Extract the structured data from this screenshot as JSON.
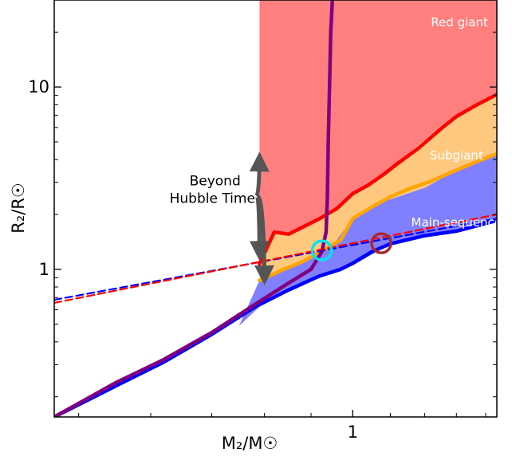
{
  "chart_data": {
    "type": "line",
    "xlabel": "M₂/M☉",
    "ylabel": "R₂/R☉",
    "xscale": "log",
    "yscale": "log",
    "xlim": [
      0.47,
      1.44
    ],
    "ylim": [
      0.155,
      30
    ],
    "xticks": [
      {
        "value": 1,
        "label": "1"
      }
    ],
    "yticks": [
      {
        "value": 1,
        "label": "1"
      },
      {
        "value": 10,
        "label": "10"
      }
    ],
    "grid": false,
    "legend": "none",
    "regions": [
      {
        "label": "Red giant",
        "color": "#ff7f7f",
        "label_at": [
          1.31,
          21.5
        ],
        "polygon": [
          [
            0.79,
            30
          ],
          [
            1.44,
            30
          ],
          [
            1.44,
            9.1
          ],
          [
            1.25,
            6.1
          ],
          [
            1.1,
            3.55
          ],
          [
            1.0,
            2.6
          ],
          [
            0.93,
            1.9
          ],
          [
            0.87,
            1.6
          ],
          [
            0.82,
            1.6
          ],
          [
            0.79,
            1.07
          ]
        ]
      },
      {
        "label": "Subgiant",
        "color": "#ffc87f",
        "label_at": [
          1.3,
          4.0
        ],
        "polygon": [
          [
            0.79,
            1.07
          ],
          [
            0.82,
            1.6
          ],
          [
            0.87,
            1.6
          ],
          [
            0.93,
            1.9
          ],
          [
            1.0,
            2.6
          ],
          [
            1.1,
            3.55
          ],
          [
            1.25,
            6.1
          ],
          [
            1.44,
            9.1
          ],
          [
            1.44,
            4.3
          ],
          [
            1.3,
            3.5
          ],
          [
            1.2,
            2.8
          ],
          [
            1.08,
            2.35
          ],
          [
            1.0,
            1.9
          ],
          [
            0.95,
            1.35
          ],
          [
            0.88,
            1.1
          ],
          [
            0.79,
            0.87
          ]
        ]
      },
      {
        "label": "Main-sequence",
        "color": "#8080ff",
        "label_at": [
          1.3,
          1.72
        ],
        "polygon": [
          [
            0.75,
            0.49
          ],
          [
            0.79,
            0.87
          ],
          [
            0.88,
            1.1
          ],
          [
            0.95,
            1.35
          ],
          [
            1.0,
            1.9
          ],
          [
            1.08,
            2.35
          ],
          [
            1.2,
            2.8
          ],
          [
            1.3,
            3.5
          ],
          [
            1.44,
            4.3
          ],
          [
            1.44,
            1.85
          ],
          [
            1.3,
            1.62
          ],
          [
            1.2,
            1.53
          ],
          [
            1.1,
            1.38
          ],
          [
            1.0,
            1.05
          ],
          [
            0.9,
            0.88
          ],
          [
            0.8,
            0.66
          ]
        ]
      }
    ],
    "series": [
      {
        "color": "#ff0000",
        "style": "solid",
        "x": [
          0.79,
          0.82,
          0.85,
          0.88,
          0.92,
          0.96,
          1.0,
          1.04,
          1.08,
          1.12,
          1.18,
          1.25,
          1.3,
          1.37,
          1.44
        ],
        "y": [
          1.07,
          1.6,
          1.56,
          1.7,
          1.9,
          2.15,
          2.6,
          2.9,
          3.3,
          3.8,
          4.6,
          5.9,
          6.9,
          8.0,
          9.1
        ]
      },
      {
        "color": "#ffa500",
        "style": "solid",
        "x": [
          0.79,
          0.84,
          0.88,
          0.93,
          0.97,
          1.0,
          1.05,
          1.1,
          1.15,
          1.22,
          1.3,
          1.37,
          1.44
        ],
        "y": [
          0.87,
          1.0,
          1.1,
          1.28,
          1.45,
          1.9,
          2.2,
          2.5,
          2.75,
          3.05,
          3.5,
          3.9,
          4.3
        ]
      },
      {
        "color": "#0000ff",
        "style": "solid",
        "x": [
          0.47,
          0.55,
          0.62,
          0.7,
          0.78,
          0.85,
          0.92,
          0.97,
          1.0,
          1.05,
          1.1,
          1.2,
          1.3,
          1.44
        ],
        "y": [
          0.155,
          0.23,
          0.31,
          0.44,
          0.62,
          0.77,
          0.92,
          1.0,
          1.08,
          1.25,
          1.38,
          1.53,
          1.62,
          1.85
        ]
      },
      {
        "color": "#800080",
        "style": "solid",
        "x": [
          0.47,
          0.55,
          0.62,
          0.7,
          0.78,
          0.85,
          0.9,
          0.925,
          0.935,
          0.938,
          0.94,
          0.943,
          0.946,
          0.95
        ],
        "y": [
          0.155,
          0.24,
          0.32,
          0.45,
          0.64,
          0.84,
          1.0,
          1.25,
          1.6,
          2.5,
          5.0,
          10.0,
          20.0,
          30.0
        ]
      },
      {
        "color": "#0000ff",
        "style": "dashed",
        "x": [
          0.47,
          1.44
        ],
        "y": [
          0.68,
          1.9
        ]
      },
      {
        "color": "#ff0000",
        "style": "dashed",
        "x": [
          0.47,
          1.44
        ],
        "y": [
          0.655,
          2.0
        ]
      }
    ],
    "markers": [
      {
        "shape": "circle",
        "color": "#00e5ee",
        "x": 0.925,
        "y": 1.27
      },
      {
        "shape": "circle",
        "color": "#a52a2a",
        "x": 1.075,
        "y": 1.39
      }
    ],
    "annotations": [
      {
        "lines": [
          "Beyond",
          "Hubble Time!"
        ],
        "text_at": [
          0.706,
          2.58
        ],
        "arrow_targets": [
          [
            0.79,
            4.2
          ],
          [
            0.79,
            1.17
          ],
          [
            0.8,
            0.86
          ]
        ],
        "color": "#555555"
      }
    ]
  }
}
